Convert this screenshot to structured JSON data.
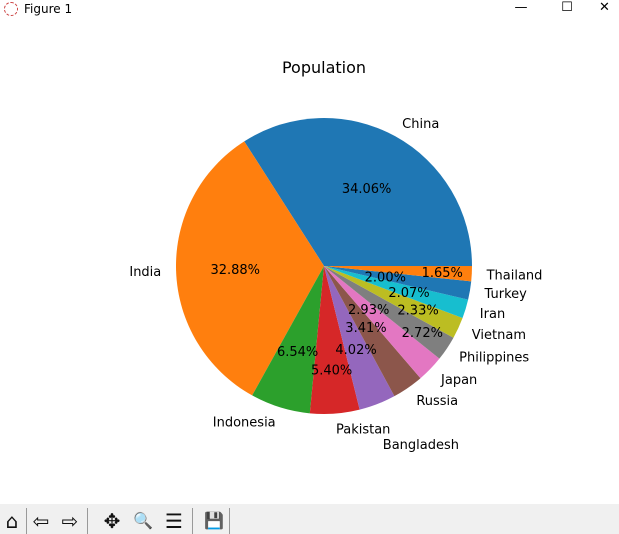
{
  "window": {
    "title": "Figure 1",
    "minimize": "—",
    "maximize": "☐",
    "close": "✕"
  },
  "toolbar": {
    "buttons": [
      {
        "name": "home-icon",
        "glyph": "⌂"
      },
      {
        "name": "back-icon",
        "glyph": "⇦"
      },
      {
        "name": "forward-icon",
        "glyph": "⇨"
      },
      {
        "name": "pan-icon",
        "glyph": "✥"
      },
      {
        "name": "zoom-icon",
        "glyph": "🔍"
      },
      {
        "name": "configure-subplots-icon",
        "glyph": "☰"
      },
      {
        "name": "save-icon",
        "glyph": "💾"
      }
    ]
  },
  "chart_data": {
    "type": "pie",
    "title": "Population",
    "start_angle": 0,
    "direction": "counterclockwise",
    "labels": [
      "China",
      "India",
      "Indonesia",
      "Pakistan",
      "Bangladesh",
      "Russia",
      "Japan",
      "Philippines",
      "Vietnam",
      "Iran",
      "Turkey",
      "Thailand"
    ],
    "values": [
      34.06,
      32.88,
      6.54,
      5.4,
      4.02,
      3.41,
      2.93,
      2.72,
      2.33,
      2.07,
      2.0,
      1.65
    ],
    "pct_labels": [
      "34.06%",
      "32.88%",
      "6.54%",
      "5.40%",
      "4.02%",
      "3.41%",
      "2.93%",
      "2.72%",
      "2.33%",
      "2.07%",
      "2.00%",
      "1.65%"
    ],
    "colors": [
      "#1f77b4",
      "#ff7f0e",
      "#2ca02c",
      "#d62728",
      "#9467bd",
      "#8c564b",
      "#e377c2",
      "#7f7f7f",
      "#bcbd22",
      "#17becf",
      "#1f77b4",
      "#ff7f0e"
    ]
  }
}
